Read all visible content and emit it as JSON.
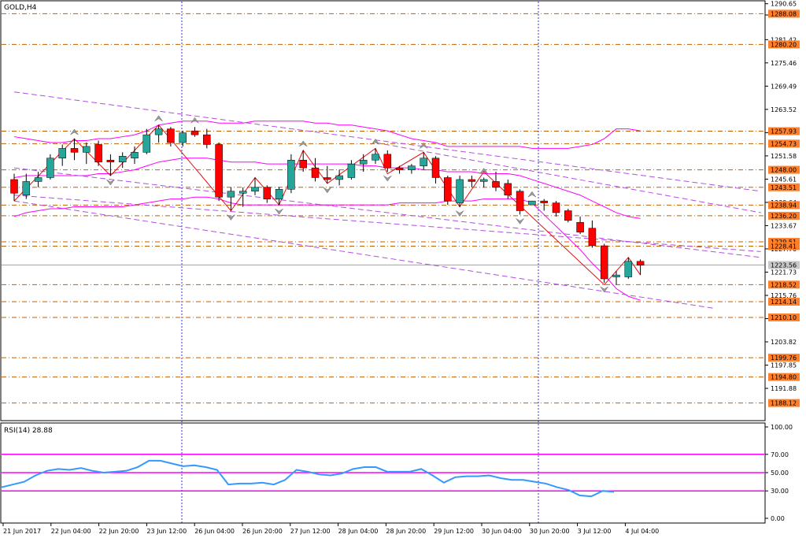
{
  "chart_data": {
    "type": "candlestick",
    "symbol_label": "GOLD,H4",
    "colors": {
      "bull": "#26a69a",
      "bear": "#ff0000",
      "wick": "#000000",
      "bollinger": "#ff00ff",
      "trendline": "#b050e0",
      "zigzag": "#e01010",
      "level_line": "#c06000",
      "level_label_bg": "#ff7f2a",
      "current_price_line": "#a0a0a0",
      "rsi_line": "#3399ff",
      "rsi_levels": "#ff00ff",
      "session_separator": "#3333dd"
    },
    "price_axis": {
      "min": 1184.0,
      "max": 1291.0,
      "ticks": [
        1290.65,
        1287.76,
        1281.42,
        1275.46,
        1269.49,
        1263.52,
        1257.55,
        1251.58,
        1245.61,
        1239.64,
        1233.67,
        1227.7,
        1221.73,
        1215.76,
        1209.79,
        1203.82,
        1197.85,
        1191.88
      ]
    },
    "levels": [
      {
        "label": "1288.08",
        "value": 1288.08
      },
      {
        "label": "1280.20",
        "value": 1280.2
      },
      {
        "label": "1257.93",
        "value": 1257.93
      },
      {
        "label": "1254.73",
        "value": 1254.73
      },
      {
        "label": "1248.00",
        "value": 1248.0
      },
      {
        "label": "1243.51",
        "value": 1243.51
      },
      {
        "label": "1238.94",
        "value": 1238.94
      },
      {
        "label": "1236.20",
        "value": 1236.2
      },
      {
        "label": "1229.51",
        "value": 1229.51
      },
      {
        "label": "1228.41",
        "value": 1228.41
      },
      {
        "label": "1218.52",
        "value": 1218.52
      },
      {
        "label": "1214.14",
        "value": 1214.14
      },
      {
        "label": "1210.10",
        "value": 1210.1
      },
      {
        "label": "1199.76",
        "value": 1199.76
      },
      {
        "label": "1194.80",
        "value": 1194.8
      },
      {
        "label": "1188.12",
        "value": 1188.12
      }
    ],
    "current_price": {
      "label": "1223.56",
      "value": 1223.56
    },
    "x_labels": [
      "21 Jun 2017",
      "22 Jun 04:00",
      "22 Jun 20:00",
      "23 Jun 12:00",
      "26 Jun 04:00",
      "26 Jun 20:00",
      "27 Jun 12:00",
      "28 Jun 04:00",
      "28 Jun 20:00",
      "29 Jun 12:00",
      "30 Jun 04:00",
      "30 Jun 20:00",
      "3 Jul 12:00",
      "4 Jul 04:00"
    ],
    "candles": [
      {
        "o": 1245.5,
        "h": 1247.0,
        "l": 1240.0,
        "c": 1242.0
      },
      {
        "o": 1241.5,
        "h": 1247.0,
        "l": 1240.5,
        "c": 1245.0
      },
      {
        "o": 1245.0,
        "h": 1247.5,
        "l": 1243.5,
        "c": 1246.0
      },
      {
        "o": 1246.0,
        "h": 1252.0,
        "l": 1245.5,
        "c": 1251.0
      },
      {
        "o": 1251.0,
        "h": 1254.5,
        "l": 1249.0,
        "c": 1253.5
      },
      {
        "o": 1253.5,
        "h": 1256.0,
        "l": 1250.5,
        "c": 1252.5
      },
      {
        "o": 1252.5,
        "h": 1255.0,
        "l": 1249.5,
        "c": 1254.0
      },
      {
        "o": 1254.5,
        "h": 1255.5,
        "l": 1249.0,
        "c": 1250.0
      },
      {
        "o": 1250.5,
        "h": 1252.0,
        "l": 1246.5,
        "c": 1250.0
      },
      {
        "o": 1250.0,
        "h": 1252.5,
        "l": 1248.5,
        "c": 1251.5
      },
      {
        "o": 1251.0,
        "h": 1254.0,
        "l": 1249.5,
        "c": 1252.5
      },
      {
        "o": 1252.5,
        "h": 1258.5,
        "l": 1252.0,
        "c": 1257.0
      },
      {
        "o": 1257.0,
        "h": 1259.5,
        "l": 1255.0,
        "c": 1258.5
      },
      {
        "o": 1258.5,
        "h": 1259.0,
        "l": 1254.0,
        "c": 1255.0
      },
      {
        "o": 1255.0,
        "h": 1258.0,
        "l": 1254.0,
        "c": 1257.5
      },
      {
        "o": 1258.0,
        "h": 1259.0,
        "l": 1256.5,
        "c": 1257.0
      },
      {
        "o": 1257.0,
        "h": 1258.5,
        "l": 1253.5,
        "c": 1254.5
      },
      {
        "o": 1254.5,
        "h": 1255.0,
        "l": 1240.0,
        "c": 1241.0
      },
      {
        "o": 1241.0,
        "h": 1243.5,
        "l": 1237.5,
        "c": 1242.5
      },
      {
        "o": 1242.0,
        "h": 1243.5,
        "l": 1238.5,
        "c": 1242.5
      },
      {
        "o": 1242.5,
        "h": 1246.0,
        "l": 1241.5,
        "c": 1243.5
      },
      {
        "o": 1243.5,
        "h": 1244.0,
        "l": 1239.5,
        "c": 1240.5
      },
      {
        "o": 1240.5,
        "h": 1243.5,
        "l": 1239.0,
        "c": 1243.0
      },
      {
        "o": 1243.0,
        "h": 1252.0,
        "l": 1242.0,
        "c": 1250.5
      },
      {
        "o": 1250.5,
        "h": 1253.0,
        "l": 1247.5,
        "c": 1248.5
      },
      {
        "o": 1248.5,
        "h": 1251.0,
        "l": 1245.0,
        "c": 1246.0
      },
      {
        "o": 1246.0,
        "h": 1249.0,
        "l": 1244.5,
        "c": 1245.5
      },
      {
        "o": 1245.5,
        "h": 1248.0,
        "l": 1244.0,
        "c": 1246.5
      },
      {
        "o": 1246.0,
        "h": 1250.5,
        "l": 1245.5,
        "c": 1249.5
      },
      {
        "o": 1249.5,
        "h": 1252.0,
        "l": 1247.5,
        "c": 1250.5
      },
      {
        "o": 1250.5,
        "h": 1253.5,
        "l": 1249.5,
        "c": 1252.0
      },
      {
        "o": 1252.0,
        "h": 1253.0,
        "l": 1247.5,
        "c": 1248.5
      },
      {
        "o": 1248.5,
        "h": 1249.0,
        "l": 1247.0,
        "c": 1248.0
      },
      {
        "o": 1248.0,
        "h": 1249.5,
        "l": 1247.0,
        "c": 1249.0
      },
      {
        "o": 1249.0,
        "h": 1252.5,
        "l": 1248.0,
        "c": 1251.0
      },
      {
        "o": 1251.0,
        "h": 1251.5,
        "l": 1244.5,
        "c": 1246.0
      },
      {
        "o": 1246.0,
        "h": 1246.5,
        "l": 1239.0,
        "c": 1240.0
      },
      {
        "o": 1239.5,
        "h": 1246.5,
        "l": 1238.5,
        "c": 1245.5
      },
      {
        "o": 1245.5,
        "h": 1246.5,
        "l": 1243.5,
        "c": 1245.0
      },
      {
        "o": 1245.0,
        "h": 1246.0,
        "l": 1243.5,
        "c": 1245.5
      },
      {
        "o": 1245.0,
        "h": 1247.5,
        "l": 1242.5,
        "c": 1243.5
      },
      {
        "o": 1244.5,
        "h": 1245.5,
        "l": 1240.5,
        "c": 1241.5
      },
      {
        "o": 1242.5,
        "h": 1243.0,
        "l": 1236.5,
        "c": 1237.5
      },
      {
        "o": 1239.0,
        "h": 1240.0,
        "l": 1239.0,
        "c": 1240.0
      },
      {
        "o": 1240.0,
        "h": 1240.5,
        "l": 1237.5,
        "c": 1239.5
      },
      {
        "o": 1239.5,
        "h": 1240.0,
        "l": 1236.0,
        "c": 1237.0
      },
      {
        "o": 1237.5,
        "h": 1238.0,
        "l": 1234.5,
        "c": 1235.0
      },
      {
        "o": 1234.5,
        "h": 1236.0,
        "l": 1231.5,
        "c": 1232.0
      },
      {
        "o": 1233.0,
        "h": 1235.0,
        "l": 1228.0,
        "c": 1228.5
      },
      {
        "o": 1228.5,
        "h": 1229.0,
        "l": 1219.0,
        "c": 1220.0
      },
      {
        "o": 1220.5,
        "h": 1222.0,
        "l": 1218.5,
        "c": 1221.0
      },
      {
        "o": 1220.5,
        "h": 1225.5,
        "l": 1220.0,
        "c": 1224.5
      },
      {
        "o": 1224.5,
        "h": 1225.0,
        "l": 1221.0,
        "c": 1223.5
      }
    ],
    "bollinger": {
      "upper": [
        1256.5,
        1256.0,
        1255.5,
        1255.0,
        1255.0,
        1255.5,
        1255.5,
        1256.0,
        1256.0,
        1256.5,
        1257.0,
        1258.0,
        1259.5,
        1260.0,
        1260.5,
        1260.5,
        1260.5,
        1260.0,
        1260.0,
        1260.0,
        1260.5,
        1260.5,
        1260.5,
        1260.5,
        1260.5,
        1260.0,
        1260.0,
        1259.5,
        1259.5,
        1259.0,
        1258.5,
        1258.0,
        1257.0,
        1256.0,
        1255.5,
        1255.0,
        1254.0,
        1254.0,
        1254.0,
        1254.0,
        1254.0,
        1254.0,
        1254.0,
        1253.5,
        1253.5,
        1253.5,
        1253.5,
        1254.0,
        1254.5,
        1256.0,
        1258.5,
        1258.5,
        1258.0
      ],
      "middle": [
        1246.0,
        1246.5,
        1246.5,
        1246.5,
        1246.5,
        1246.5,
        1246.5,
        1247.0,
        1247.0,
        1247.5,
        1248.0,
        1249.0,
        1250.0,
        1250.5,
        1251.0,
        1251.0,
        1251.0,
        1250.5,
        1250.0,
        1250.0,
        1250.0,
        1249.5,
        1249.5,
        1249.5,
        1249.5,
        1249.5,
        1249.5,
        1249.5,
        1249.5,
        1249.0,
        1249.0,
        1248.5,
        1248.5,
        1248.5,
        1248.0,
        1248.0,
        1247.5,
        1247.5,
        1247.5,
        1247.0,
        1247.0,
        1247.0,
        1246.5,
        1245.5,
        1244.5,
        1243.5,
        1242.5,
        1241.5,
        1240.0,
        1238.5,
        1237.0,
        1236.0,
        1235.5
      ],
      "lower": [
        1236.0,
        1237.0,
        1237.5,
        1238.0,
        1238.0,
        1238.5,
        1238.5,
        1238.5,
        1238.5,
        1238.5,
        1239.0,
        1239.5,
        1240.0,
        1240.5,
        1240.5,
        1241.0,
        1241.0,
        1240.5,
        1239.5,
        1239.0,
        1239.0,
        1239.0,
        1239.0,
        1239.0,
        1239.0,
        1239.0,
        1239.0,
        1239.0,
        1239.0,
        1239.0,
        1239.0,
        1239.0,
        1239.5,
        1239.5,
        1239.5,
        1239.5,
        1240.0,
        1240.0,
        1240.0,
        1240.5,
        1240.5,
        1240.5,
        1240.5,
        1239.5,
        1236.5,
        1233.5,
        1230.5,
        1227.5,
        1224.0,
        1221.0,
        1217.5,
        1215.5,
        1214.5
      ]
    },
    "zigzag": [
      {
        "i": 0,
        "v": 1240.0
      },
      {
        "i": 5,
        "v": 1256.0
      },
      {
        "i": 8,
        "v": 1246.5
      },
      {
        "i": 12,
        "v": 1259.5
      },
      {
        "i": 18,
        "v": 1237.5
      },
      {
        "i": 20,
        "v": 1246.0
      },
      {
        "i": 22,
        "v": 1239.0
      },
      {
        "i": 24,
        "v": 1253.0
      },
      {
        "i": 26,
        "v": 1244.5
      },
      {
        "i": 30,
        "v": 1253.5
      },
      {
        "i": 31,
        "v": 1247.0
      },
      {
        "i": 34,
        "v": 1252.5
      },
      {
        "i": 37,
        "v": 1238.5
      },
      {
        "i": 39,
        "v": 1247.5
      },
      {
        "i": 49,
        "v": 1218.5
      },
      {
        "i": 51,
        "v": 1225.5
      },
      {
        "i": 52,
        "v": 1221.0
      }
    ],
    "fractals_up": [
      5,
      12,
      15,
      24,
      30,
      34,
      39,
      43
    ],
    "fractals_down": [
      8,
      18,
      22,
      26,
      31,
      37,
      42,
      49
    ],
    "trendlines": [
      {
        "x1": 0,
        "y1": 1268.0,
        "x2": 62,
        "y2": 1242.5
      },
      {
        "x1": 0,
        "y1": 1241.5,
        "x2": 62,
        "y2": 1227.0
      },
      {
        "x1": 30,
        "y1": 1255.0,
        "x2": 62,
        "y2": 1237.0
      },
      {
        "x1": 0,
        "y1": 1248.5,
        "x2": 62,
        "y2": 1225.5
      },
      {
        "x1": 0,
        "y1": 1240.0,
        "x2": 58,
        "y2": 1212.5
      }
    ],
    "rsi": {
      "label": "RSI(14) 28.88",
      "axis_ticks": [
        "100.00",
        "70.00",
        "50.00",
        "30.00",
        "0.00"
      ],
      "levels": [
        70,
        50,
        30
      ],
      "values": [
        34.0,
        37.0,
        40.0,
        47.0,
        52.0,
        54.0,
        53.0,
        55.0,
        52.0,
        50.0,
        51.0,
        52.0,
        56.0,
        63.0,
        63.0,
        60.0,
        57.0,
        58.0,
        56.0,
        53.0,
        37.0,
        38.0,
        38.0,
        39.0,
        37.0,
        42.0,
        53.0,
        51.0,
        48.0,
        47.0,
        49.0,
        54.0,
        56.0,
        56.0,
        51.0,
        51.0,
        51.0,
        54.0,
        47.0,
        39.0,
        45.0,
        46.0,
        46.0,
        47.0,
        44.0,
        42.0,
        42.0,
        40.0,
        38.0,
        34.0,
        31.0,
        25.0,
        24.0,
        30.0,
        29.0
      ],
      "ylim": [
        0,
        100
      ]
    }
  }
}
